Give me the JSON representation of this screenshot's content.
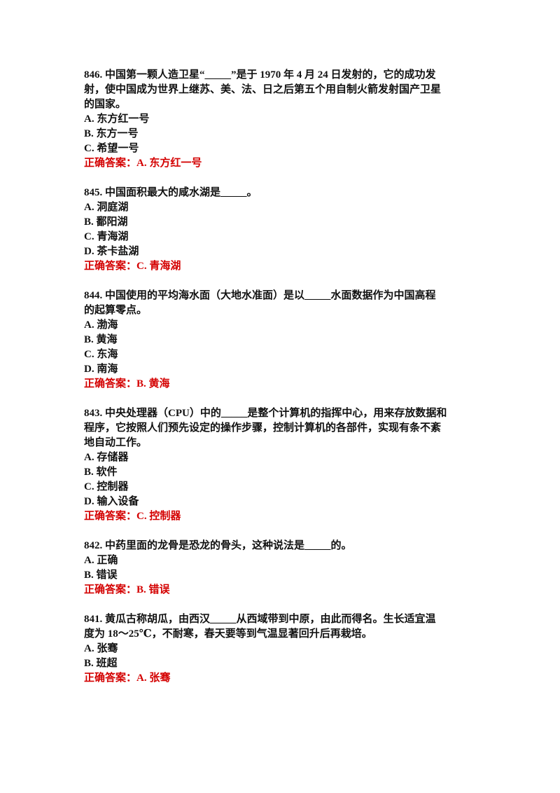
{
  "questions": [
    {
      "lines": [
        "846. 中国第一颗人造卫星“_____”是于 1970 年 4 月 24 日发射的，它的成功发",
        "射，使中国成为世界上继苏、美、法、日之后第五个用自制火箭发射国产卫星",
        "的国家。"
      ],
      "options": [
        "A. 东方红一号",
        "B. 东方一号",
        "C. 希望一号"
      ],
      "answer": "正确答案：A. 东方红一号"
    },
    {
      "lines": [
        "845. 中国面积最大的咸水湖是_____。"
      ],
      "options": [
        "A. 洞庭湖",
        "B. 鄱阳湖",
        "C. 青海湖",
        "D. 茶卡盐湖"
      ],
      "answer": "正确答案：C. 青海湖"
    },
    {
      "lines": [
        "844. 中国使用的平均海水面（大地水准面）是以_____水面数据作为中国高程",
        "的起算零点。"
      ],
      "options": [
        "A. 渤海",
        "B. 黄海",
        "C. 东海",
        "D. 南海"
      ],
      "answer": "正确答案：B. 黄海"
    },
    {
      "lines": [
        "843. 中央处理器（CPU）中的_____是整个计算机的指挥中心，用来存放数据和",
        "程序，它按照人们预先设定的操作步骤，控制计算机的各部件，实现有条不紊",
        "地自动工作。"
      ],
      "options": [
        "A. 存储器",
        "B. 软件",
        "C. 控制器",
        "D. 输入设备"
      ],
      "answer": "正确答案：C. 控制器"
    },
    {
      "lines": [
        "842. 中药里面的龙骨是恐龙的骨头，这种说法是_____的。"
      ],
      "options": [
        "A. 正确",
        "B. 错误"
      ],
      "answer": "正确答案：B. 错误"
    },
    {
      "lines": [
        "841. 黄瓜古称胡瓜，由西汉_____从西域带到中原，由此而得名。生长适宜温",
        "度为 18～25℃，不耐寒，春天要等到气温显著回升后再栽培。"
      ],
      "options": [
        "A. 张骞",
        "B. 班超"
      ],
      "answer": "正确答案：A. 张骞"
    }
  ],
  "colors": {
    "text": "#111111",
    "answer": "#d40000"
  }
}
